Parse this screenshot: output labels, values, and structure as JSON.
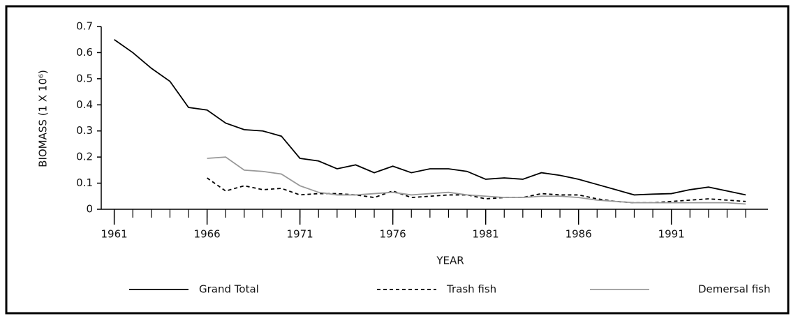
{
  "chart_data": {
    "type": "line",
    "ylabel": "BIOMASS (1 X 10⁶)",
    "xlabel": "YEAR",
    "x": [
      1961,
      1962,
      1963,
      1964,
      1965,
      1966,
      1967,
      1968,
      1969,
      1970,
      1971,
      1972,
      1973,
      1974,
      1975,
      1976,
      1977,
      1978,
      1979,
      1980,
      1981,
      1982,
      1983,
      1984,
      1985,
      1986,
      1987,
      1988,
      1989,
      1990,
      1991,
      1992,
      1993,
      1994,
      1995
    ],
    "series": [
      {
        "name": "Grand Total",
        "color": "#000000",
        "dash": "solid",
        "values": [
          0.65,
          0.6,
          0.54,
          0.49,
          0.39,
          0.38,
          0.33,
          0.305,
          0.3,
          0.28,
          0.195,
          0.185,
          0.155,
          0.17,
          0.14,
          0.165,
          0.14,
          0.155,
          0.155,
          0.145,
          0.115,
          0.12,
          0.115,
          0.14,
          0.13,
          0.115,
          0.095,
          0.075,
          0.055,
          0.058,
          0.06,
          0.075,
          0.085,
          0.07,
          0.055
        ]
      },
      {
        "name": "Trash fish",
        "color": "#000000",
        "dash": "dashed",
        "values": [
          null,
          null,
          null,
          null,
          null,
          0.12,
          0.07,
          0.09,
          0.075,
          0.08,
          0.055,
          0.06,
          0.06,
          0.055,
          0.045,
          0.07,
          0.045,
          0.05,
          0.055,
          0.055,
          0.04,
          0.045,
          0.045,
          0.06,
          0.055,
          0.055,
          0.04,
          0.03,
          0.025,
          0.025,
          0.03,
          0.035,
          0.04,
          0.035,
          0.03
        ]
      },
      {
        "name": "Demersal fish",
        "color": "#999999",
        "dash": "solid",
        "values": [
          null,
          null,
          null,
          null,
          null,
          0.195,
          0.2,
          0.15,
          0.145,
          0.135,
          0.09,
          0.065,
          0.055,
          0.055,
          0.06,
          0.065,
          0.055,
          0.06,
          0.065,
          0.055,
          0.05,
          0.045,
          0.045,
          0.05,
          0.05,
          0.045,
          0.035,
          0.03,
          0.025,
          0.025,
          0.025,
          0.025,
          0.025,
          0.025,
          0.02
        ]
      }
    ],
    "xlim": [
      1960.3,
      1996.2
    ],
    "xticks": [
      1961,
      1966,
      1971,
      1976,
      1981,
      1986,
      1991
    ],
    "ylim": [
      0,
      0.7
    ],
    "yticks": [
      0,
      0.1,
      0.2,
      0.3,
      0.4,
      0.5,
      0.6,
      0.7
    ]
  }
}
